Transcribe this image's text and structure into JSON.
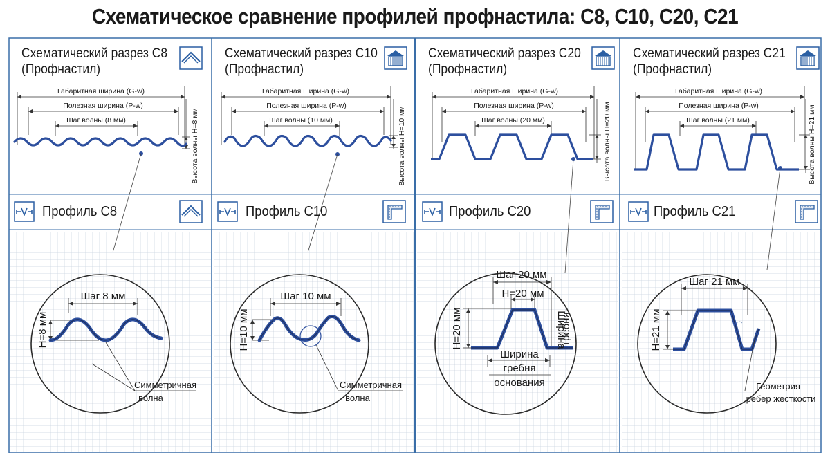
{
  "title": "Схематическое сравнение профилей профнастила: С8, С10, С20, С21",
  "colors": {
    "accent": "#2b5fa3",
    "wave": "#2d4f9e",
    "frame": "#3a6ea8",
    "grid": "#c9d3df"
  },
  "icons": {
    "scheme_c8": "roof-icon",
    "scheme_c10": "building-icon",
    "scheme_c20": "building-icon",
    "scheme_c21": "building-icon",
    "wave": "wave-width-icon",
    "profile_c8": "roof-icon",
    "profile_other": "profile-corner-icon"
  },
  "panels": [
    {
      "title_line1": "Схематический разрез С8",
      "title_line2": "(Профнастил)",
      "gw": "Габаритная ширина (G-w)",
      "pw": "Полезная ширина (P-w)",
      "step": "Шаг волны (8 мм)",
      "height": "Высота волны Н=8 мм",
      "profile_label": "Профиль С8",
      "zoom_step": "Шаг 8 мм",
      "zoom_height": "Н=8 мм",
      "callout_line1": "Симметричная",
      "callout_line2": "волна"
    },
    {
      "title_line1": "Схематический разрез С10",
      "title_line2": "(Профнастил)",
      "gw": "Габаритная ширина (G-w)",
      "pw": "Полезная ширина (P-w)",
      "step": "Шаг волны (10 мм)",
      "height": "Высота волны Н=10 мм",
      "profile_label": "Профиль С10",
      "zoom_step": "Шаг 10 мм",
      "zoom_height": "Н=10 мм",
      "callout_line1": "Симметричная",
      "callout_line2": "волна"
    },
    {
      "title_line1": "Схематический разрез С20",
      "title_line2": "(Профнастил)",
      "gw": "Габаритная ширина (G-w)",
      "pw": "Полезная ширина (P-w)",
      "step": "Шаг волны (20 мм)",
      "height": "Высота волны Н=20 мм",
      "profile_label": "Профиль С20",
      "zoom_step": "Шаг 20 мм",
      "zoom_inner": "Н=20 мм",
      "zoom_height": "Н=20 мм",
      "ridge_line1": "Ширина",
      "ridge_line2": "гребня",
      "base_line1": "Ширина",
      "base_line2": "гребня",
      "base_line3": "основания"
    },
    {
      "title_line1": "Схематический разрез С21",
      "title_line2": "(Профнастил)",
      "gw": "Габаритная ширина (G-w)",
      "pw": "Полезная ширина (P-w)",
      "step": "Шаг волны (21 мм)",
      "height": "Высота волны Н=21 мм",
      "profile_label": "Профиль С21",
      "zoom_step": "Шаг 21 мм",
      "zoom_height": "Н=21 мм",
      "callout_line1": "Геометрия",
      "callout_line2": "ребер жесткости"
    }
  ]
}
